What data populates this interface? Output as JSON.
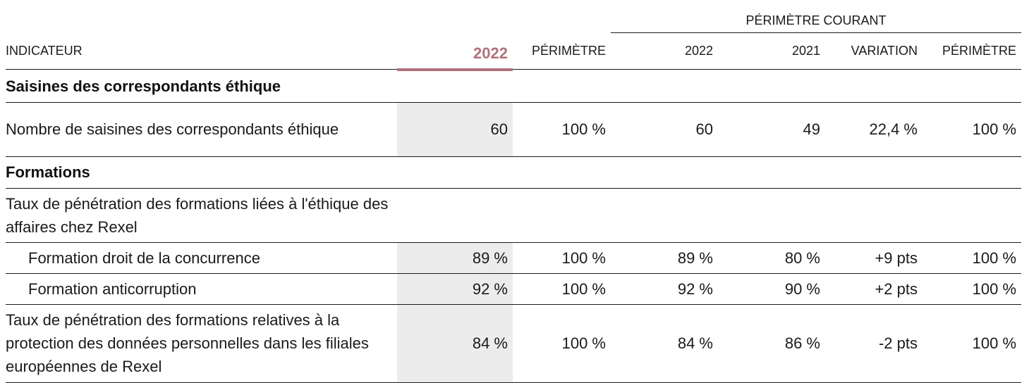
{
  "header": {
    "group_label": "PÉRIMÈTRE COURANT",
    "columns": {
      "indicator": "INDICATEUR",
      "selected_year": "2022",
      "perimeter": "PÉRIMÈTRE",
      "current_2022": "2022",
      "current_2021": "2021",
      "variation": "VARIATION",
      "current_perimeter": "PÉRIMÈTRE"
    }
  },
  "colors": {
    "accent": "#b0727b",
    "highlight_column_bg": "#ececec",
    "rule": "#1a1a1a"
  },
  "sections": [
    {
      "title": "Saisines des correspondants éthique",
      "rows": [
        {
          "label": "Nombre de saisines des correspondants éthique",
          "values": [
            "60",
            "100 %",
            "60",
            "49",
            "22,4 %",
            "100 %"
          ]
        }
      ]
    },
    {
      "title": "Formations",
      "rows": [
        {
          "label": "Taux de pénétration des formations liées à l'éthique des affaires chez Rexel",
          "values": [
            "",
            "",
            "",
            "",
            "",
            ""
          ]
        },
        {
          "label": "Formation droit de la concurrence",
          "values": [
            "89 %",
            "100 %",
            "89 %",
            "80 %",
            "+9 pts",
            "100 %"
          ]
        },
        {
          "label": "Formation anticorruption",
          "values": [
            "92 %",
            "100 %",
            "92 %",
            "90 %",
            "+2 pts",
            "100 %"
          ]
        },
        {
          "label": "Taux de pénétration des formations relatives à la protection des données personnelles dans les filiales européennes de Rexel",
          "values": [
            "84 %",
            "100 %",
            "84 %",
            "86 %",
            "-2 pts",
            "100 %"
          ]
        }
      ]
    }
  ]
}
